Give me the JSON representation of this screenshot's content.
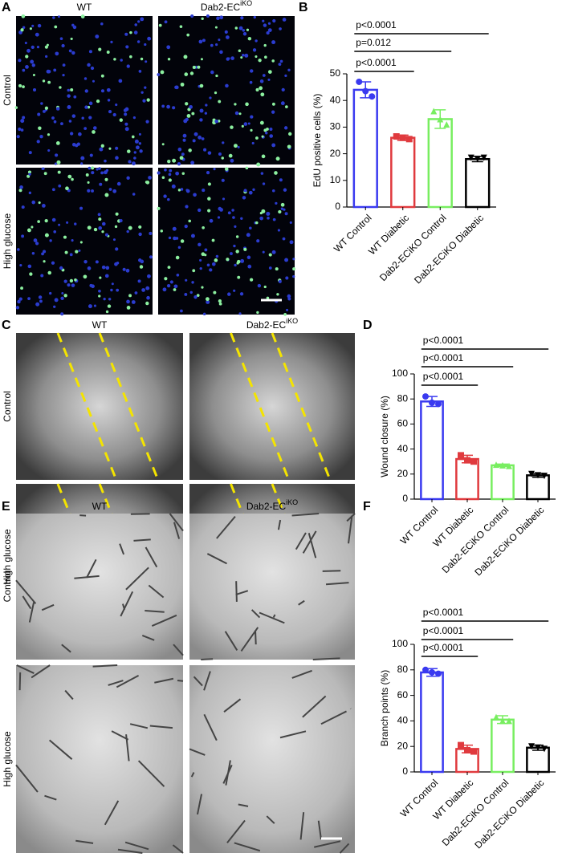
{
  "figure": {
    "panel_letters": [
      "A",
      "B",
      "C",
      "D",
      "E",
      "F"
    ],
    "image_panels": [
      {
        "col_labels": [
          {
            "text": "WT"
          },
          {
            "text": "Dab2-EC",
            "sup": "iKO"
          }
        ],
        "row_labels": [
          "Control",
          "High glucose"
        ]
      },
      {
        "col_labels": [
          {
            "text": "WT"
          },
          {
            "text": "Dab2-EC",
            "sup": "iKO"
          }
        ],
        "row_labels": [
          "Control",
          "High glucose"
        ]
      },
      {
        "col_labels": [
          {
            "text": "WT"
          },
          {
            "text": "Dab2-EC",
            "sup": "iKO"
          }
        ],
        "row_labels": [
          "Control",
          "High glucose"
        ]
      }
    ]
  },
  "chart_data": [
    {
      "type": "bar",
      "y_label": "EdU positive cells (%)",
      "categories": [
        "WT Control",
        "WT Diabetic",
        "Dab2-ECiKO Control",
        "Dab2-ECiKO Diabetic"
      ],
      "colors": [
        "#3a3af0",
        "#e03a3e",
        "#78ee60",
        "#000000"
      ],
      "values": [
        44,
        26,
        33,
        18
      ],
      "errors": [
        3,
        1,
        3.5,
        1
      ],
      "points": [
        [
          47,
          43.5,
          41.5
        ],
        [
          26.5,
          26,
          25.5
        ],
        [
          36,
          33,
          31
        ],
        [
          18.5,
          18,
          18.5
        ]
      ],
      "ylim": [
        0,
        50
      ],
      "yticks": [
        0,
        10,
        20,
        30,
        40,
        50
      ],
      "comparisons": [
        {
          "label": "p<0.0001",
          "from": 0,
          "to": 3
        },
        {
          "label": "p=0.012",
          "from": 0,
          "to": 2
        },
        {
          "label": "p<0.0001",
          "from": 0,
          "to": 1
        }
      ]
    },
    {
      "type": "bar",
      "y_label": "Wound closure (%)",
      "categories": [
        "WT Control",
        "WT Diabetic",
        "Dab2-ECiKO Control",
        "Dab2-ECiKO Diabetic"
      ],
      "colors": [
        "#3a3af0",
        "#e03a3e",
        "#78ee60",
        "#000000"
      ],
      "values": [
        78,
        32,
        27,
        19
      ],
      "errors": [
        4,
        3,
        1,
        1.5
      ],
      "points": [
        [
          82,
          77,
          76
        ],
        [
          35,
          31,
          30
        ],
        [
          27.5,
          27,
          26.5
        ],
        [
          20,
          19,
          18.5
        ]
      ],
      "ylim": [
        0,
        100
      ],
      "yticks": [
        0,
        20,
        40,
        60,
        80,
        100
      ],
      "comparisons": [
        {
          "label": "p<0.0001",
          "from": 0,
          "to": 3
        },
        {
          "label": "p<0.0001",
          "from": 0,
          "to": 2
        },
        {
          "label": "p<0.0001",
          "from": 0,
          "to": 1
        }
      ]
    },
    {
      "type": "bar",
      "y_label": "Branch points (%)",
      "categories": [
        "WT Control",
        "WT Diabetic",
        "Dab2-ECiKO Control",
        "Dab2-ECiKO Diabetic"
      ],
      "colors": [
        "#3a3af0",
        "#e03a3e",
        "#78ee60",
        "#000000"
      ],
      "values": [
        78,
        18,
        41,
        19
      ],
      "errors": [
        3,
        3,
        3,
        2
      ],
      "points": [
        [
          80,
          78,
          77
        ],
        [
          21,
          17,
          16
        ],
        [
          43,
          40,
          40
        ],
        [
          20,
          19,
          18
        ]
      ],
      "ylim": [
        0,
        100
      ],
      "yticks": [
        0,
        20,
        40,
        60,
        80,
        100
      ],
      "comparisons": [
        {
          "label": "p<0.0001",
          "from": 0,
          "to": 3
        },
        {
          "label": "p<0.0001",
          "from": 0,
          "to": 2
        },
        {
          "label": "p<0.0001",
          "from": 0,
          "to": 1
        }
      ]
    }
  ]
}
